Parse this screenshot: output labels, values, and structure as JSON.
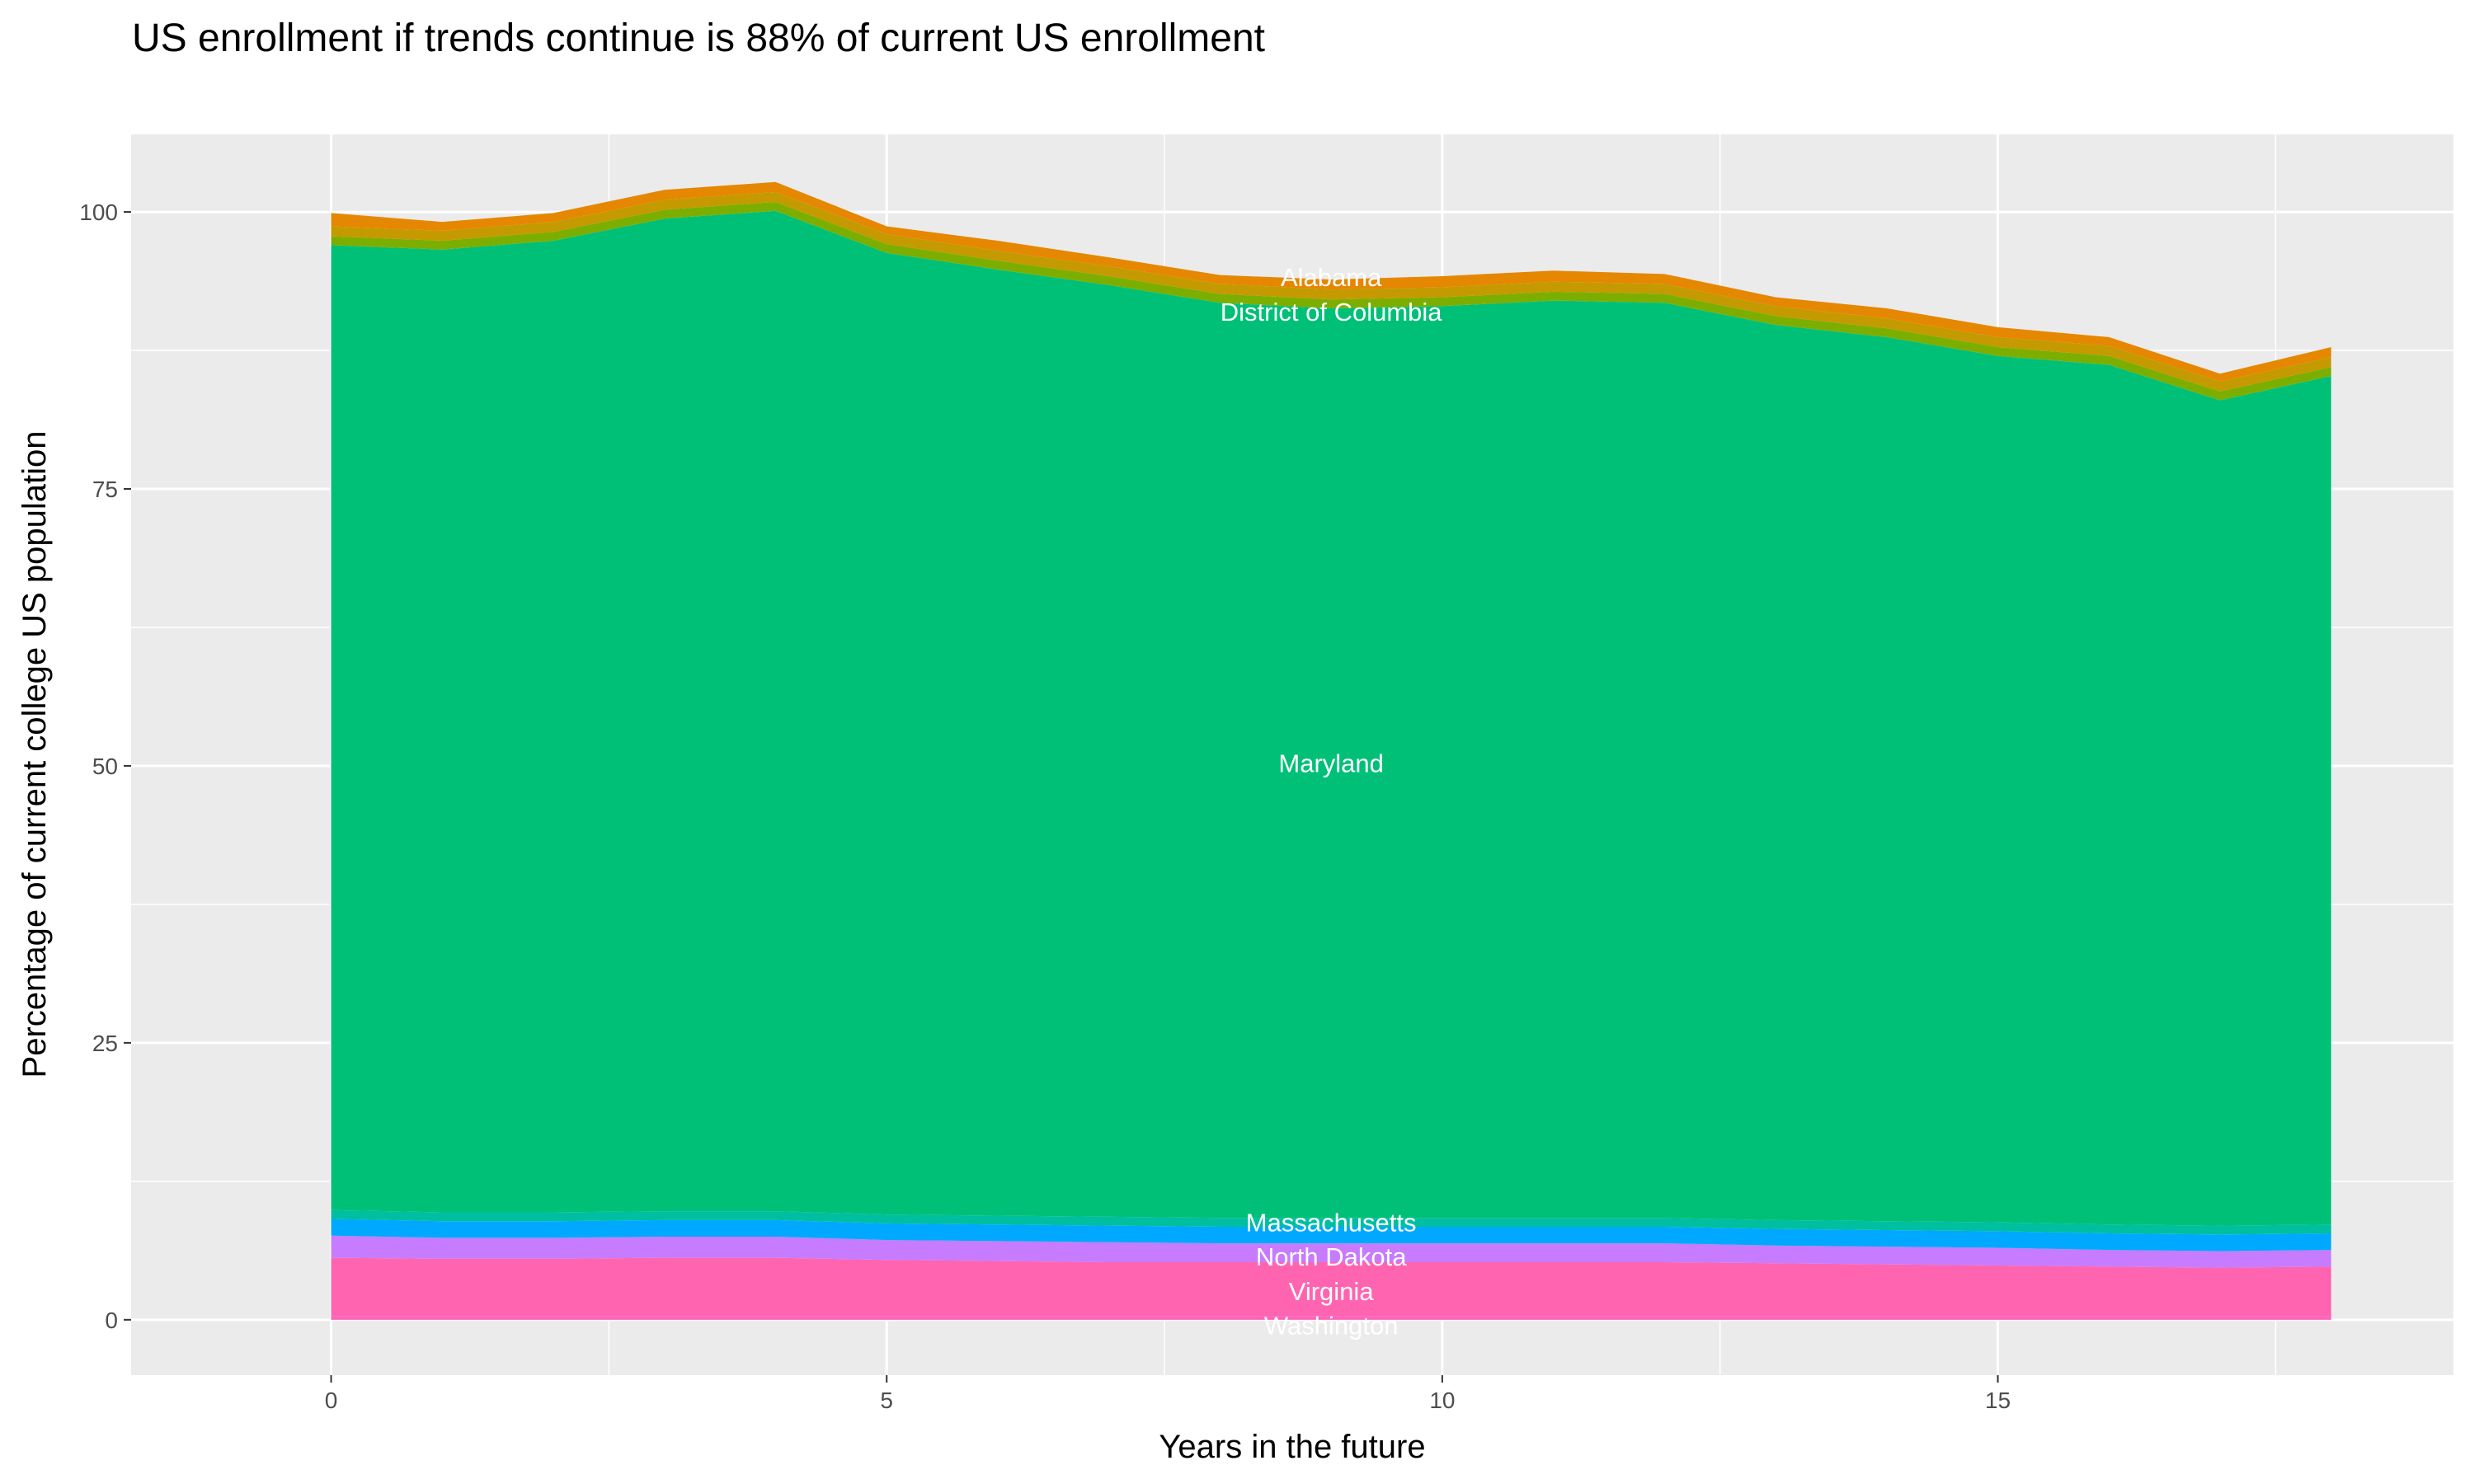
{
  "chart_data": {
    "type": "area",
    "stacked": true,
    "title": "US enrollment if trends continue is 88% of current US enrollment",
    "xlabel": "Years in the future",
    "ylabel": "Percentage of current college US population",
    "x": [
      0,
      1,
      2,
      3,
      4,
      5,
      6,
      7,
      8,
      9,
      10,
      11,
      12,
      13,
      14,
      15,
      16,
      17,
      18
    ],
    "xlim": [
      -1.8,
      19.1
    ],
    "ylim": [
      -5,
      107
    ],
    "xticks": [
      0,
      5,
      10,
      15
    ],
    "yticks": [
      0,
      25,
      50,
      75,
      100
    ],
    "xtick_labels": [
      "0",
      "5",
      "10",
      "15"
    ],
    "ytick_labels": [
      "0",
      "25",
      "50",
      "75",
      "100"
    ],
    "grid": true,
    "label_x": 9,
    "series": [
      {
        "name": "Washington",
        "color": "#FF62BC",
        "label": true,
        "values": [
          0.3,
          0.3,
          0.3,
          0.3,
          0.3,
          0.3,
          0.3,
          0.3,
          0.3,
          0.3,
          0.3,
          0.3,
          0.3,
          0.3,
          0.3,
          0.3,
          0.3,
          0.3,
          0.3
        ]
      },
      {
        "name": "Virginia",
        "color": "#FF64B0",
        "label": true,
        "values": [
          5.3,
          5.2,
          5.2,
          5.3,
          5.3,
          5.1,
          5.0,
          4.9,
          4.9,
          4.9,
          4.9,
          4.9,
          4.9,
          4.8,
          4.7,
          4.6,
          4.5,
          4.4,
          4.5
        ]
      },
      {
        "name": "North Dakota",
        "color": "#C77CFF",
        "label": true,
        "values": [
          2.0,
          1.9,
          1.9,
          1.9,
          1.9,
          1.8,
          1.8,
          1.8,
          1.7,
          1.7,
          1.7,
          1.7,
          1.7,
          1.6,
          1.6,
          1.6,
          1.5,
          1.5,
          1.5
        ]
      },
      {
        "name": "Massachusetts",
        "color": "#00A9FF",
        "label": true,
        "values": [
          1.5,
          1.5,
          1.5,
          1.5,
          1.5,
          1.5,
          1.5,
          1.5,
          1.5,
          1.5,
          1.5,
          1.5,
          1.5,
          1.5,
          1.5,
          1.5,
          1.5,
          1.5,
          1.5
        ]
      },
      {
        "color": "#00BFA0",
        "label": false,
        "values": [
          0.8,
          0.8,
          0.8,
          0.8,
          0.8,
          0.8,
          0.8,
          0.8,
          0.8,
          0.8,
          0.8,
          0.8,
          0.8,
          0.8,
          0.8,
          0.8,
          0.8,
          0.8,
          0.8
        ]
      },
      {
        "name": "Maryland",
        "color": "#00C078",
        "label": true,
        "values": [
          87.1,
          86.9,
          87.7,
          89.6,
          90.3,
          86.8,
          85.4,
          84.1,
          82.6,
          82.1,
          82.3,
          82.8,
          82.6,
          80.8,
          79.8,
          78.2,
          77.6,
          74.5,
          76.6
        ]
      },
      {
        "name": "District of Columbia",
        "color": "#7CAE00",
        "label": true,
        "values": [
          0.8,
          0.8,
          0.8,
          0.8,
          0.8,
          0.8,
          0.8,
          0.8,
          0.8,
          0.8,
          0.8,
          0.8,
          0.8,
          0.8,
          0.8,
          0.8,
          0.8,
          0.8,
          0.8
        ]
      },
      {
        "color": "#C49A00",
        "label": false,
        "values": [
          0.9,
          0.9,
          0.9,
          0.9,
          0.9,
          0.9,
          0.9,
          0.9,
          0.9,
          0.9,
          0.9,
          0.9,
          0.9,
          0.9,
          0.9,
          0.9,
          0.9,
          0.9,
          0.9
        ]
      },
      {
        "name": "Alabama",
        "color": "#E58700",
        "label": true,
        "values": [
          1.2,
          0.8,
          0.8,
          0.9,
          0.9,
          0.7,
          0.9,
          0.8,
          0.8,
          0.9,
          1.0,
          1.0,
          0.9,
          0.8,
          0.9,
          0.9,
          0.8,
          0.7,
          0.9
        ]
      }
    ]
  }
}
